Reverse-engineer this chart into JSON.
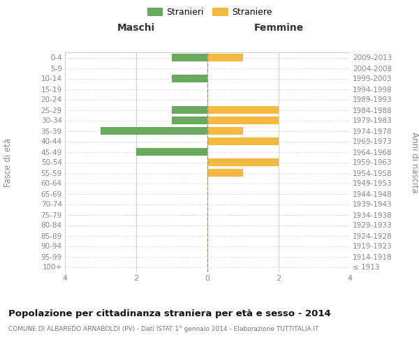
{
  "age_groups": [
    "100+",
    "95-99",
    "90-94",
    "85-89",
    "80-84",
    "75-79",
    "70-74",
    "65-69",
    "60-64",
    "55-59",
    "50-54",
    "45-49",
    "40-44",
    "35-39",
    "30-34",
    "25-29",
    "20-24",
    "15-19",
    "10-14",
    "5-9",
    "0-4"
  ],
  "birth_years": [
    "≤ 1913",
    "1914-1918",
    "1919-1923",
    "1924-1928",
    "1929-1933",
    "1934-1938",
    "1939-1943",
    "1944-1948",
    "1949-1953",
    "1954-1958",
    "1959-1963",
    "1964-1968",
    "1969-1973",
    "1974-1978",
    "1979-1983",
    "1984-1988",
    "1989-1993",
    "1994-1998",
    "1999-2003",
    "2004-2008",
    "2009-2013"
  ],
  "males": [
    0,
    0,
    0,
    0,
    0,
    0,
    0,
    0,
    0,
    0,
    0,
    2,
    0,
    3,
    1,
    1,
    0,
    0,
    1,
    0,
    1
  ],
  "females": [
    0,
    0,
    0,
    0,
    0,
    0,
    0,
    0,
    0,
    1,
    2,
    0,
    2,
    1,
    2,
    2,
    0,
    0,
    0,
    0,
    1
  ],
  "male_color": "#6aaa5e",
  "female_color": "#f5b942",
  "bar_height": 0.7,
  "xlim": 4,
  "title": "Popolazione per cittadinanza straniera per età e sesso - 2014",
  "subtitle": "COMUNE DI ALBAREDO ARNABOLDI (PV) - Dati ISTAT 1° gennaio 2014 - Elaborazione TUTTITALIA.IT",
  "left_header": "Maschi",
  "right_header": "Femmine",
  "left_ylabel": "Fasce di età",
  "right_ylabel": "Anni di nascita",
  "legend_stranieri": "Stranieri",
  "legend_straniere": "Straniere",
  "bg_color": "#ffffff",
  "grid_color": "#cccccc",
  "dotted_grid_color": "#cccccc",
  "center_line_color": "#999977",
  "axis_label_color": "#888888",
  "title_color": "#111111",
  "subtitle_color": "#777777"
}
